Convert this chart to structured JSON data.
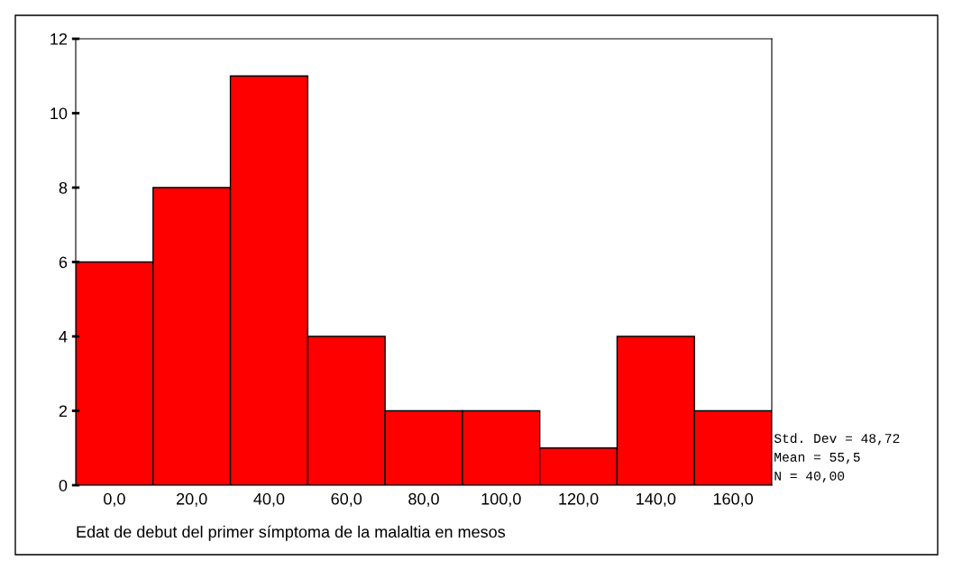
{
  "chart_data": {
    "type": "histogram",
    "xlabel": "Edat de debut del primer símptoma de la malaltia en mesos",
    "bins": [
      -10,
      10,
      30,
      50,
      70,
      90,
      110,
      130,
      150,
      170
    ],
    "values": [
      6,
      8,
      11,
      4,
      2,
      2,
      1,
      4,
      2
    ],
    "color": "#ff0000",
    "xlim": [
      -10,
      170
    ],
    "xticks": [
      {
        "value": 0,
        "label": "0,0"
      },
      {
        "value": 20,
        "label": "20,0"
      },
      {
        "value": 40,
        "label": "40,0"
      },
      {
        "value": 60,
        "label": "60,0"
      },
      {
        "value": 80,
        "label": "80,0"
      },
      {
        "value": 100,
        "label": "100,0"
      },
      {
        "value": 120,
        "label": "120,0"
      },
      {
        "value": 140,
        "label": "140,0"
      },
      {
        "value": 160,
        "label": "160,0"
      }
    ],
    "ylim": [
      0,
      12
    ],
    "yticks": [
      0,
      2,
      4,
      6,
      8,
      10,
      12
    ],
    "grid": false,
    "legend": false,
    "annotations": [
      "Std. Dev = 48,72",
      "Mean = 55,5",
      "N = 40,00"
    ]
  }
}
